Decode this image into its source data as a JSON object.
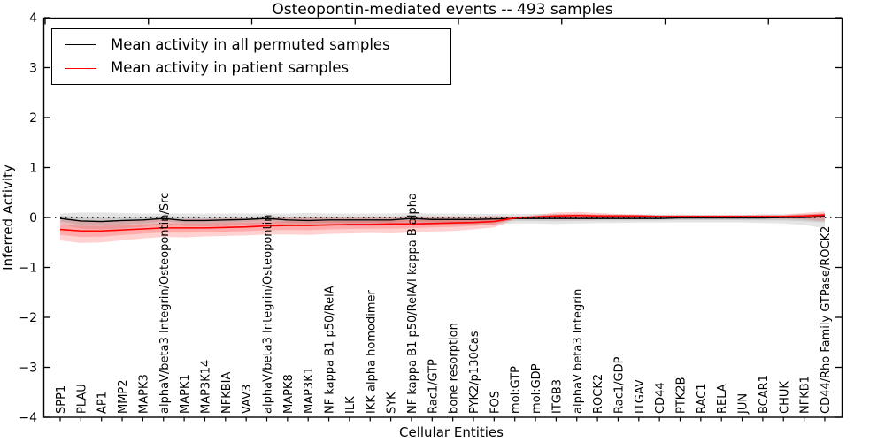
{
  "figure": {
    "title": "Osteopontin-mediated events -- 493 samples",
    "xlabel": "Cellular Entities",
    "ylabel": "Inferred Activity"
  },
  "legend": {
    "entries": [
      {
        "label": "Mean activity in all permuted samples",
        "color": "#000000"
      },
      {
        "label": "Mean activity in patient samples",
        "color": "#ff0000"
      }
    ]
  },
  "chart_data": {
    "type": "line",
    "title": "Osteopontin-mediated events -- 493 samples",
    "xlabel": "Cellular Entities",
    "ylabel": "Inferred Activity",
    "ylim": [
      -4,
      4
    ],
    "yticks": [
      -4,
      -3,
      -2,
      -1,
      0,
      1,
      2,
      3,
      4
    ],
    "ytick_labels": [
      "−4",
      "−3",
      "−2",
      "−1",
      "0",
      "1",
      "2",
      "3",
      "4"
    ],
    "grid": false,
    "legend_position": "upper left",
    "zero_line": {
      "y": 0,
      "style": "dotted",
      "color": "#000000"
    },
    "categories": [
      "SPP1",
      "PLAU",
      "AP1",
      "MMP2",
      "MAPK3",
      "alphaV/beta3 Integrin/Osteopontin/Src",
      "MAPK1",
      "MAP3K14",
      "NFKBIA",
      "VAV3",
      "alphaV/beta3 Integrin/Osteopontin",
      "MAPK8",
      "MAP3K1",
      "NF kappa B1 p50/RelA",
      "ILK",
      "IKK alpha homodimer",
      "SYK",
      "NF kappa B1 p50/RelA/I kappa B alpha",
      "Rac1/GTP",
      "bone resorption",
      "PYK2/p130Cas",
      "FOS",
      "mol:GTP",
      "mol:GDP",
      "ITGB3",
      "alphaV beta3 Integrin",
      "ROCK2",
      "Rac1/GDP",
      "ITGAV",
      "CD44",
      "PTK2B",
      "RAC1",
      "RELA",
      "JUN",
      "BCAR1",
      "CHUK",
      "NFKB1",
      "CD44/Rho Family GTPase/ROCK2"
    ],
    "series": [
      {
        "name": "Mean activity in all permuted samples",
        "color": "#000000",
        "band_color": "rgba(0,0,0,0.10)",
        "values": [
          -0.02,
          -0.07,
          -0.08,
          -0.06,
          -0.05,
          -0.02,
          -0.06,
          -0.06,
          -0.05,
          -0.04,
          -0.02,
          -0.05,
          -0.06,
          -0.05,
          -0.05,
          -0.05,
          -0.05,
          -0.02,
          -0.04,
          -0.04,
          -0.04,
          -0.03,
          -0.02,
          -0.02,
          -0.02,
          -0.02,
          -0.02,
          -0.02,
          -0.02,
          -0.02,
          -0.01,
          -0.01,
          -0.01,
          -0.01,
          -0.01,
          0.0,
          0.0,
          0.02
        ],
        "band_upper": [
          0.08,
          0.1,
          0.1,
          0.09,
          0.08,
          0.08,
          0.08,
          0.08,
          0.08,
          0.08,
          0.08,
          0.08,
          0.09,
          0.08,
          0.08,
          0.08,
          0.08,
          0.09,
          0.08,
          0.08,
          0.07,
          0.07,
          0.07,
          0.07,
          0.07,
          0.06,
          0.06,
          0.06,
          0.06,
          0.06,
          0.06,
          0.05,
          0.05,
          0.05,
          0.06,
          0.06,
          0.07,
          0.08
        ],
        "band_lower": [
          -0.14,
          -0.22,
          -0.24,
          -0.22,
          -0.19,
          -0.13,
          -0.17,
          -0.18,
          -0.17,
          -0.15,
          -0.12,
          -0.16,
          -0.17,
          -0.16,
          -0.17,
          -0.17,
          -0.16,
          -0.12,
          -0.15,
          -0.16,
          -0.15,
          -0.14,
          -0.12,
          -0.12,
          -0.13,
          -0.12,
          -0.11,
          -0.11,
          -0.1,
          -0.1,
          -0.1,
          -0.1,
          -0.1,
          -0.1,
          -0.11,
          -0.12,
          -0.15,
          -0.22
        ]
      },
      {
        "name": "Mean activity in patient samples",
        "color": "#ff0000",
        "band_color": "rgba(255,0,0,0.18)",
        "values": [
          -0.24,
          -0.27,
          -0.27,
          -0.25,
          -0.23,
          -0.21,
          -0.21,
          -0.21,
          -0.2,
          -0.19,
          -0.17,
          -0.16,
          -0.16,
          -0.15,
          -0.14,
          -0.14,
          -0.13,
          -0.13,
          -0.12,
          -0.11,
          -0.1,
          -0.08,
          -0.01,
          0.01,
          0.03,
          0.04,
          0.03,
          0.03,
          0.03,
          0.02,
          0.02,
          0.02,
          0.02,
          0.02,
          0.02,
          0.02,
          0.03,
          0.05
        ],
        "band_upper": [
          -0.05,
          -0.06,
          -0.06,
          -0.05,
          -0.04,
          -0.03,
          -0.03,
          -0.03,
          -0.02,
          -0.02,
          -0.01,
          0.0,
          0.0,
          0.0,
          0.0,
          0.0,
          0.01,
          0.02,
          0.02,
          0.02,
          0.02,
          0.03,
          0.01,
          0.05,
          0.1,
          0.11,
          0.09,
          0.07,
          0.06,
          0.05,
          0.05,
          0.05,
          0.05,
          0.05,
          0.06,
          0.06,
          0.09,
          0.12
        ],
        "band_lower": [
          -0.46,
          -0.51,
          -0.5,
          -0.46,
          -0.42,
          -0.39,
          -0.4,
          -0.38,
          -0.37,
          -0.36,
          -0.34,
          -0.34,
          -0.35,
          -0.33,
          -0.32,
          -0.31,
          -0.32,
          -0.3,
          -0.28,
          -0.27,
          -0.24,
          -0.2,
          -0.03,
          -0.03,
          -0.04,
          -0.04,
          -0.04,
          -0.03,
          -0.03,
          -0.02,
          -0.02,
          -0.02,
          -0.02,
          -0.02,
          -0.02,
          -0.03,
          -0.04,
          -0.07
        ]
      }
    ]
  }
}
